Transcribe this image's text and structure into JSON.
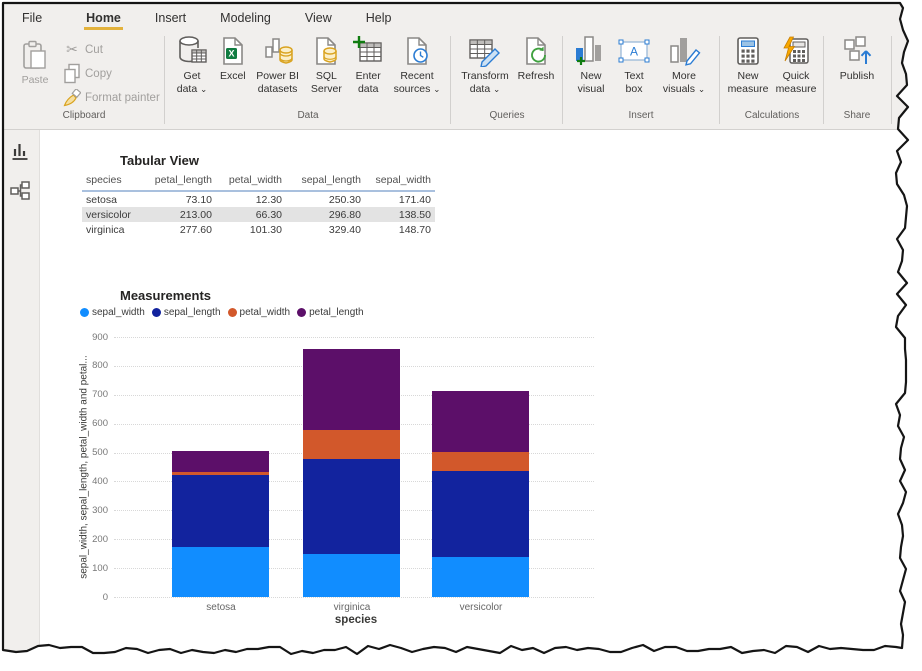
{
  "tabs": [
    {
      "label": "File",
      "active": false
    },
    {
      "label": "Home",
      "active": true
    },
    {
      "label": "Insert",
      "active": false
    },
    {
      "label": "Modeling",
      "active": false
    },
    {
      "label": "View",
      "active": false
    },
    {
      "label": "Help",
      "active": false
    }
  ],
  "ribbon": {
    "groups": [
      {
        "label": "Clipboard",
        "type": "clipboard",
        "paste": {
          "label": "Paste",
          "icon": "paste-icon",
          "enabled": false
        },
        "small_buttons": [
          {
            "label": "Cut",
            "icon": "cut-icon",
            "enabled": false
          },
          {
            "label": "Copy",
            "icon": "copy-icon",
            "enabled": false
          },
          {
            "label": "Format painter",
            "icon": "format-painter-icon",
            "enabled": false
          }
        ]
      },
      {
        "label": "Data",
        "buttons": [
          {
            "lines": [
              "Get",
              "data"
            ],
            "icon": "get-data-icon",
            "dropdown": true
          },
          {
            "lines": [
              "Excel"
            ],
            "icon": "excel-icon"
          },
          {
            "lines": [
              "Power BI",
              "datasets"
            ],
            "icon": "powerbi-datasets-icon"
          },
          {
            "lines": [
              "SQL",
              "Server"
            ],
            "icon": "sql-server-icon"
          },
          {
            "lines": [
              "Enter",
              "data"
            ],
            "icon": "enter-data-icon"
          },
          {
            "lines": [
              "Recent",
              "sources"
            ],
            "icon": "recent-sources-icon",
            "dropdown": true
          }
        ]
      },
      {
        "label": "Queries",
        "buttons": [
          {
            "lines": [
              "Transform",
              "data"
            ],
            "icon": "transform-data-icon",
            "dropdown": true
          },
          {
            "lines": [
              "Refresh"
            ],
            "icon": "refresh-icon"
          }
        ]
      },
      {
        "label": "Insert",
        "buttons": [
          {
            "lines": [
              "New",
              "visual"
            ],
            "icon": "new-visual-icon"
          },
          {
            "lines": [
              "Text",
              "box"
            ],
            "icon": "text-box-icon"
          },
          {
            "lines": [
              "More",
              "visuals"
            ],
            "icon": "more-visuals-icon",
            "dropdown": true
          }
        ]
      },
      {
        "label": "Calculations",
        "buttons": [
          {
            "lines": [
              "New",
              "measure"
            ],
            "icon": "new-measure-icon"
          },
          {
            "lines": [
              "Quick",
              "measure"
            ],
            "icon": "quick-measure-icon"
          }
        ]
      },
      {
        "label": "Share",
        "buttons": [
          {
            "lines": [
              "Publish"
            ],
            "icon": "publish-icon"
          }
        ]
      }
    ]
  },
  "sidebar": {
    "items": [
      {
        "name": "report-view",
        "icon": "report-view-icon",
        "selected": true
      },
      {
        "name": "model-view",
        "icon": "model-view-icon",
        "selected": false
      }
    ]
  },
  "table": {
    "title": "Tabular View",
    "columns": [
      "species",
      "petal_length",
      "petal_width",
      "sepal_length",
      "sepal_width"
    ],
    "rows": [
      [
        "setosa",
        "73.10",
        "12.30",
        "250.30",
        "171.40"
      ],
      [
        "versicolor",
        "213.00",
        "66.30",
        "296.80",
        "138.50"
      ],
      [
        "virginica",
        "277.60",
        "101.30",
        "329.40",
        "148.70"
      ]
    ],
    "highlighted_row": 1
  },
  "chart": {
    "title": "Measurements"
  },
  "chart_data": {
    "type": "bar",
    "stacked": true,
    "title": "Measurements",
    "categories": [
      "setosa",
      "virginica",
      "versicolor"
    ],
    "series": [
      {
        "name": "sepal_width",
        "color": "#118DFF",
        "values": [
          171.4,
          148.7,
          138.5
        ]
      },
      {
        "name": "sepal_length",
        "color": "#12239E",
        "values": [
          250.3,
          329.4,
          296.8
        ]
      },
      {
        "name": "petal_width",
        "color": "#D2582B",
        "values": [
          12.3,
          101.3,
          66.3
        ]
      },
      {
        "name": "petal_length",
        "color": "#5C0F69",
        "values": [
          73.1,
          277.6,
          213.0
        ]
      }
    ],
    "totals": [
      507.1,
      857.0,
      714.6
    ],
    "xlabel": "species",
    "ylabel": "sepal_width, sepal_length, petal_width and petal...",
    "ylim": [
      0,
      900
    ],
    "ytick_step": 100,
    "grid": true,
    "legend_position": "top"
  },
  "colors": {
    "accent_gold": "#E3B23C",
    "ribbon_bg": "#F1EFED",
    "table_header_line": "#A9C0DE",
    "row_highlight": "#E3E3E3"
  }
}
